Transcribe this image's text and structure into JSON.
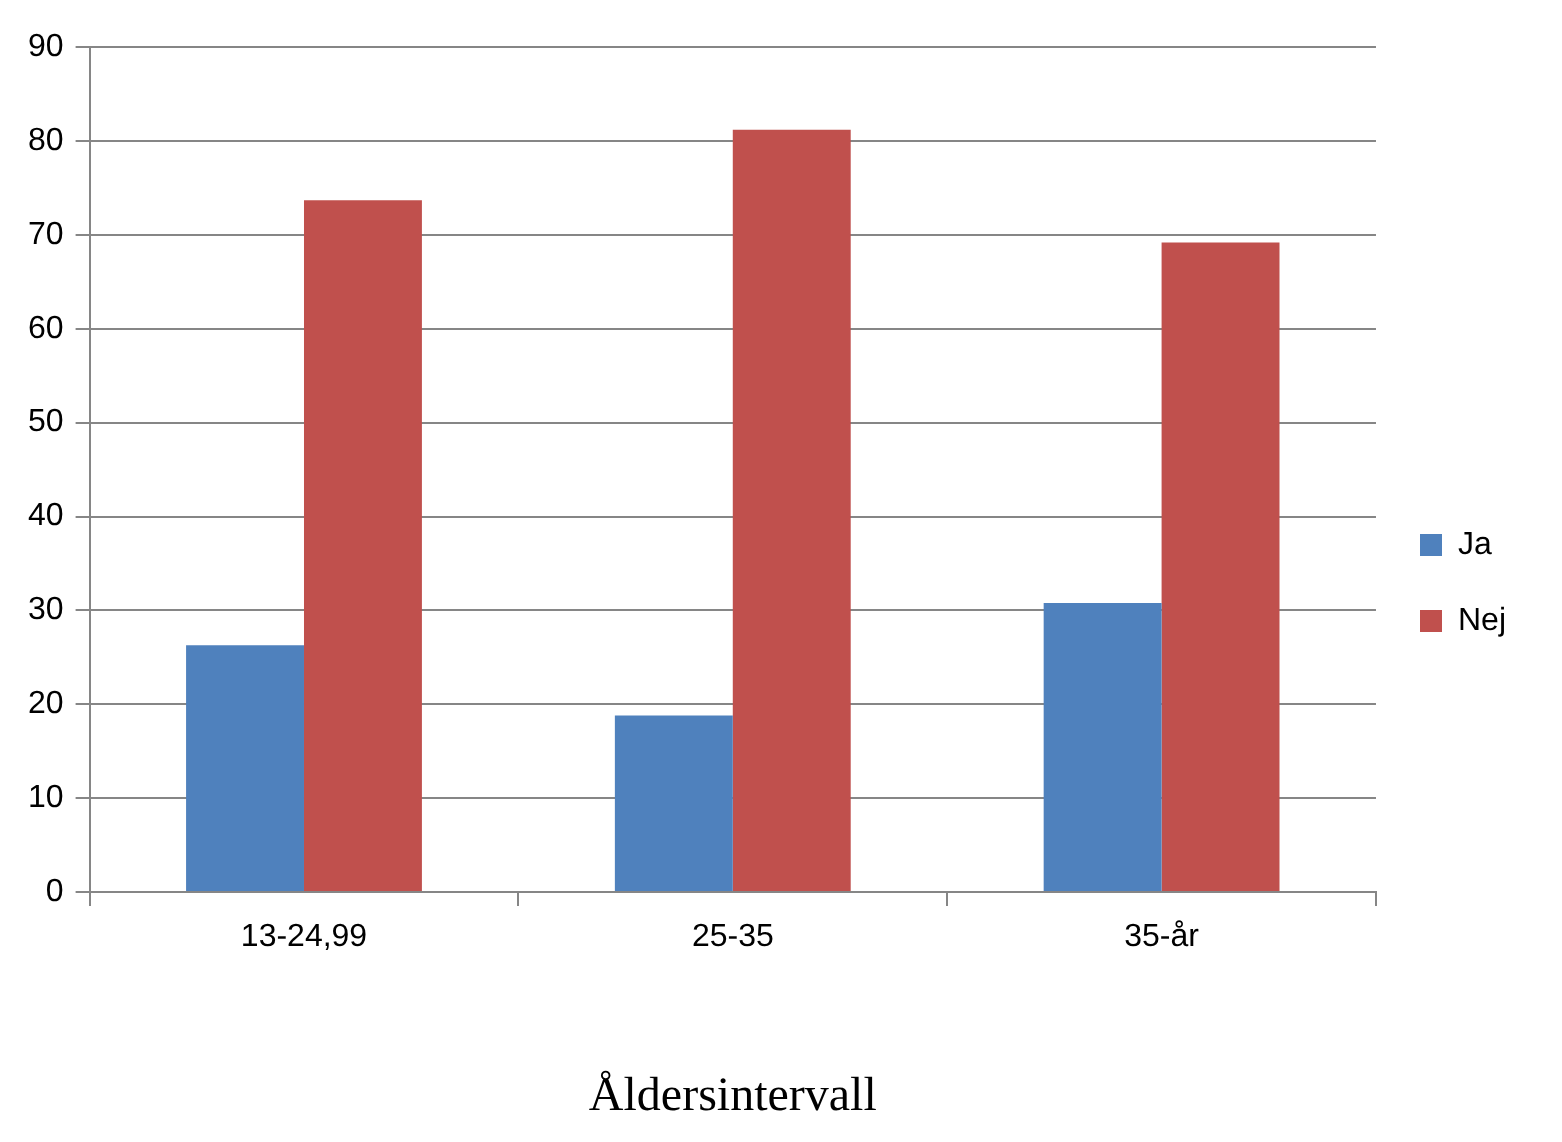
{
  "chart_data": {
    "type": "bar",
    "xlabel": "Åldersintervall",
    "categories": [
      "13-24,99",
      "25-35",
      "35-år"
    ],
    "series": [
      {
        "name": "Ja",
        "color": "#4f81bd",
        "values": [
          26.3,
          18.8,
          30.8
        ]
      },
      {
        "name": "Nej",
        "color": "#c0504d",
        "values": [
          73.7,
          81.2,
          69.2
        ]
      }
    ],
    "ylim": [
      0,
      90
    ],
    "yticks": [
      0,
      10,
      20,
      30,
      40,
      50,
      60,
      70,
      80,
      90
    ],
    "grid": "y",
    "legend": "right"
  }
}
